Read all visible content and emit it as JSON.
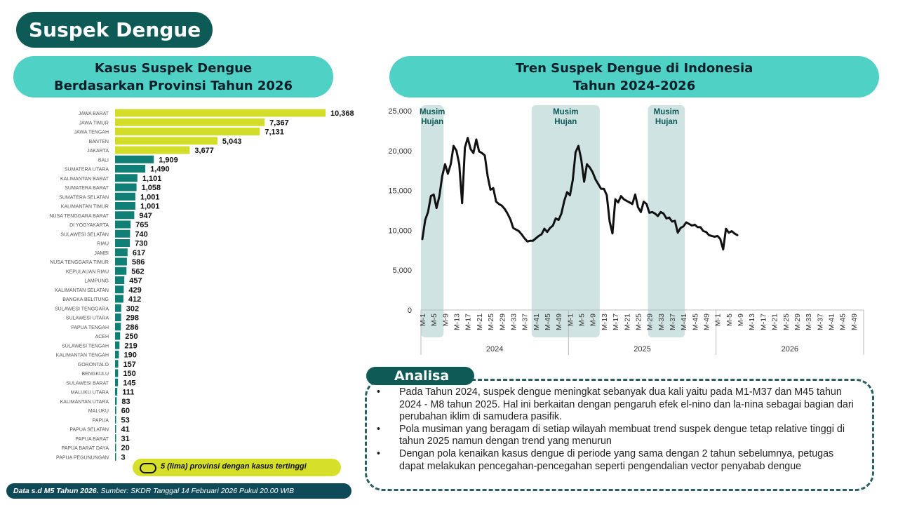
{
  "page_title": "Suspek Dengue",
  "left_panel": {
    "title_line1": "Kasus Suspek Dengue",
    "title_line2": "Berdasarkan Provinsi Tahun 2026",
    "note": "5 (lima) provinsi dengan kasus tertinggi"
  },
  "right_panel": {
    "title_line1": "Tren Suspek Dengue di Indonesia",
    "title_line2": "Tahun 2024-2026",
    "season_label_line1": "Musim",
    "season_label_line2": "Hujan"
  },
  "colors": {
    "highlight_bar": "#d2dd2a",
    "bar": "#127f76",
    "line": "#111111",
    "season_band": "#cfe3e3",
    "header": "#4fd1c5",
    "dark_teal": "#0e5a57"
  },
  "analysis": {
    "title": "Analisa",
    "points": [
      "Pada Tahun 2024, suspek dengue meningkat sebanyak dua kali yaitu pada M1-M37 dan M45 tahun 2024 - M8 tahun 2025. Hal ini berkaitan dengan pengaruh efek el-nino dan la-nina sebagai bagian dari perubahan iklim di samudera pasifik.",
      "Pola musiman yang beragam di setiap wilayah membuat trend suspek dengue tetap relative tinggi di tahun 2025 namun dengan trend yang menurun",
      "Dengan pola kenaikan kasus dengue di periode yang sama dengan 2 tahun sebelumnya, petugas dapat melakukan pencegahan-pencegahan seperti pengendalian vector penyabab dengue"
    ]
  },
  "footer": {
    "bold": "Data s.d M5 Tahun 2026.",
    "source": " Sumber: SKDR Tanggal 14 Februari 2026 Pukul 20.00 WIB"
  },
  "chart_data": [
    {
      "type": "bar",
      "orientation": "horizontal",
      "categories": [
        "JAWA BARAT",
        "JAWA TIMUR",
        "JAWA TENGAH",
        "BANTEN",
        "JAKARTA",
        "BALI",
        "SUMATERA UTARA",
        "KALIMANTAN BARAT",
        "SUMATERA BARAT",
        "SUMATERA SELATAN",
        "KALIMANTAN TIMUR",
        "NUSA TENGGARA BARAT",
        "DI YOGYAKARTA",
        "SULAWESI SELATAN",
        "RIAU",
        "JAMBI",
        "NUSA TENGGARA TIMUR",
        "KEPULAUAN RIAU",
        "LAMPUNG",
        "KALIMANTAN SELATAN",
        "BANGKA BELITUNG",
        "SULAWESI TENGGARA",
        "SULAWESI UTARA",
        "PAPUA TENGAH",
        "ACEH",
        "SULAWESI TENGAH",
        "KALIMANTAN TENGAH",
        "GORONTALO",
        "BENGKULU",
        "SULAWESI BARAT",
        "MALUKU UTARA",
        "KALIMANTAN UTARA",
        "MALUKU",
        "PAPUA",
        "PAPUA SELATAN",
        "PAPUA BARAT",
        "PAPUA BARAT DAYA",
        "PAPUA PEGUNUNGAN"
      ],
      "values": [
        10368,
        7367,
        7131,
        5043,
        3677,
        1909,
        1490,
        1101,
        1058,
        1001,
        1001,
        947,
        765,
        740,
        730,
        617,
        586,
        562,
        457,
        429,
        412,
        302,
        298,
        286,
        250,
        219,
        190,
        157,
        150,
        145,
        111,
        83,
        60,
        53,
        41,
        31,
        20,
        3
      ],
      "value_labels": [
        "10,368",
        "7,367",
        "7,131",
        "5,043",
        "3,677",
        "1,909",
        "1,490",
        "1,101",
        "1,058",
        "1,001",
        "1,001",
        "947",
        "765",
        "740",
        "730",
        "617",
        "586",
        "562",
        "457",
        "429",
        "412",
        "302",
        "298",
        "286",
        "250",
        "219",
        "190",
        "157",
        "150",
        "145",
        "111",
        "83",
        "60",
        "53",
        "41",
        "31",
        "20",
        "3"
      ],
      "highlighted_top": 5
    },
    {
      "type": "line",
      "ylim": [
        0,
        25000
      ],
      "y_ticks": [
        "0",
        "5,000",
        "10,000",
        "15,000",
        "20,000",
        "25,000"
      ],
      "x_tick_labels": [
        "M-1",
        "M-5",
        "M-9",
        "M-13",
        "M-17",
        "M-21",
        "M-25",
        "M-29",
        "M-33",
        "M-37",
        "M-41",
        "M-45",
        "M-49"
      ],
      "years": [
        "2024",
        "2025",
        "2026"
      ],
      "weeks_per_year": 52,
      "season_bands": [
        [
          1,
          8
        ],
        [
          40,
          63
        ],
        [
          81,
          93
        ]
      ],
      "series": [
        {
          "values": [
            8900,
            11300,
            12300,
            14300,
            14500,
            12800,
            14300,
            16800,
            18300,
            17100,
            18300,
            20600,
            20000,
            18300,
            13400,
            20400,
            21600,
            20200,
            19700,
            21400,
            19900,
            19700,
            19400,
            16800,
            15100,
            15300,
            13600,
            13300,
            13100,
            12700,
            12100,
            11400,
            10300,
            10100,
            9900,
            9500,
            9000,
            8600,
            8700,
            8700,
            9000,
            9300,
            9500,
            10200,
            9800,
            10300,
            10600,
            11500,
            11300,
            12100,
            13700,
            14800,
            14400,
            16300,
            19800,
            20600,
            18900,
            16100,
            18300,
            17900,
            17300,
            16400,
            15800,
            15200,
            15200,
            14400,
            11100,
            9600,
            13900,
            13500,
            14300,
            13900,
            13700,
            13500,
            13300,
            14500,
            12900,
            12300,
            13600,
            13300,
            12200,
            12300,
            12100,
            11800,
            12300,
            12100,
            11500,
            11600,
            11100,
            11200,
            9700,
            10300,
            10500,
            11000,
            10800,
            10600,
            10700,
            10400,
            10400,
            9900,
            9800,
            9400,
            9300,
            9200,
            9300,
            8900,
            7600,
            10200,
            9700,
            9900,
            9600,
            9400
          ]
        }
      ]
    }
  ]
}
